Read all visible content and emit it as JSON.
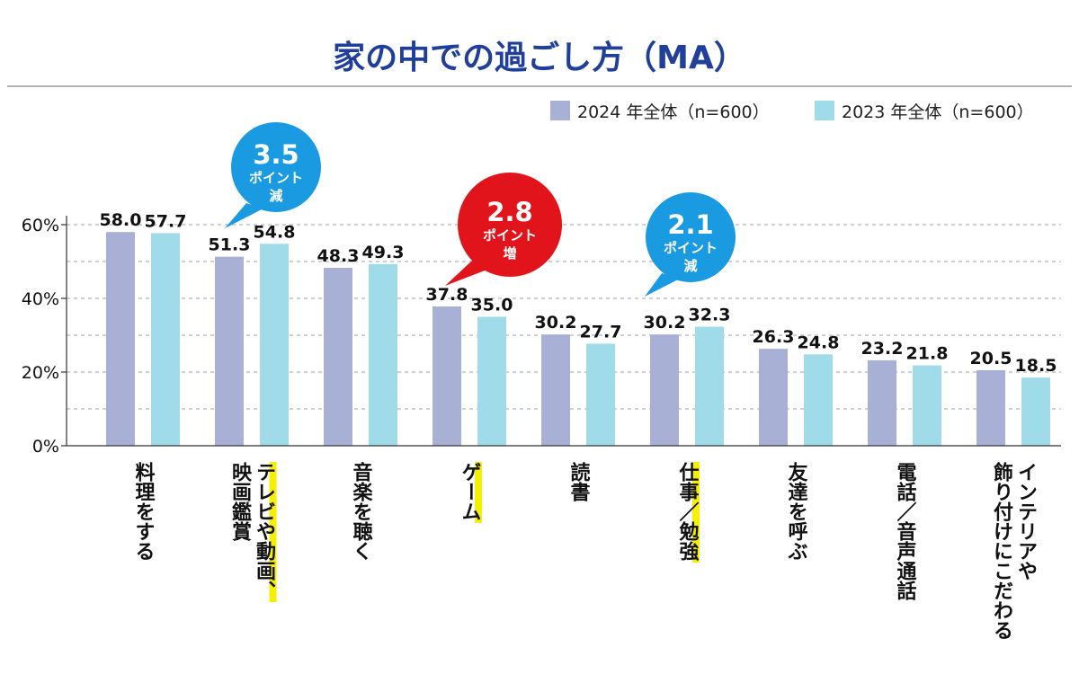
{
  "chart_data": {
    "type": "bar",
    "title": "家の中での過ごし方（MA）",
    "categories": [
      "料理をする",
      "映画鑑賞、テレビや動画、",
      "音楽を聴く",
      "ゲーム",
      "読書",
      "仕事／勉強",
      "友達を呼ぶ",
      "電話／音声通話",
      "飾り付けにこだわる、インテリアや"
    ],
    "category_lines": [
      [
        "料理をする"
      ],
      [
        "テレビや動画、",
        "映画鑑賞"
      ],
      [
        "音楽を聴く"
      ],
      [
        "ゲーム"
      ],
      [
        "読書"
      ],
      [
        "仕事／勉強"
      ],
      [
        "友達を呼ぶ"
      ],
      [
        "電話／音声通話"
      ],
      [
        "インテリアや",
        "飾り付けにこだわる"
      ]
    ],
    "series": [
      {
        "name": "2024 年全体（n=600）",
        "color": "#a9b0d6",
        "values": [
          58.0,
          51.3,
          48.3,
          37.8,
          30.2,
          30.2,
          26.3,
          23.2,
          20.5
        ]
      },
      {
        "name": "2023 年全体（n=600）",
        "color": "#9fdbe8",
        "values": [
          57.7,
          54.8,
          49.3,
          35.0,
          27.7,
          32.3,
          24.8,
          21.8,
          18.5
        ]
      }
    ],
    "value_labels": [
      [
        "58.0",
        "51.3",
        "48.3",
        "37.8",
        "30.2",
        "30.2",
        "26.3",
        "23.2",
        "20.5"
      ],
      [
        "57.7",
        "54.8",
        "49.3",
        "35.0",
        "27.7",
        "32.3",
        "24.8",
        "21.8",
        "18.5"
      ]
    ],
    "ylim": [
      0,
      60
    ],
    "yticks": [
      0,
      20,
      40,
      60
    ],
    "ytick_labels": [
      "0%",
      "20%",
      "40%",
      "60%"
    ],
    "grid": "dashed",
    "legend_position": "top-right",
    "highlighted_categories": [
      1,
      3,
      5
    ],
    "highlight_color": "#f5ef00",
    "annotations": [
      {
        "category": 1,
        "big": "3.5",
        "small": "ポイント",
        "tail": "減",
        "color": "#1a9ae0"
      },
      {
        "category": 3,
        "big": "2.8",
        "small": "ポイント",
        "tail": "増",
        "color": "#e1141c"
      },
      {
        "category": 5,
        "big": "2.1",
        "small": "ポイント",
        "tail": "減",
        "color": "#1a9ae0"
      }
    ]
  }
}
